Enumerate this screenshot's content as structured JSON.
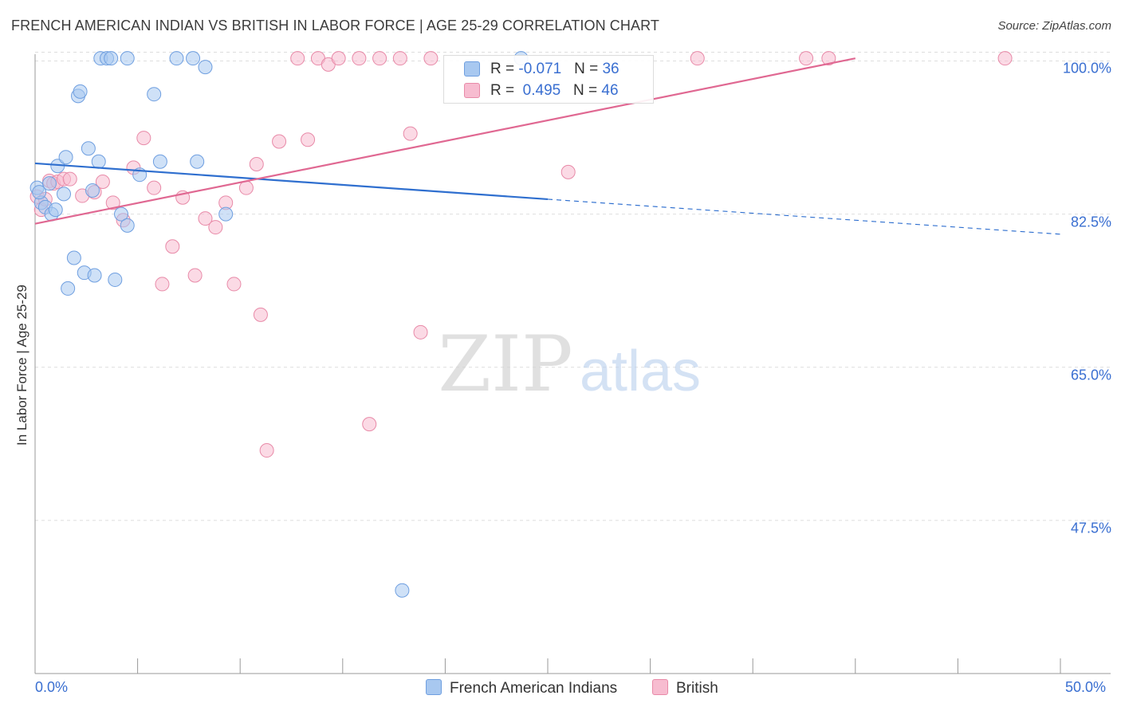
{
  "header": {
    "title": "FRENCH AMERICAN INDIAN VS BRITISH IN LABOR FORCE | AGE 25-29 CORRELATION CHART",
    "source": "Source: ZipAtlas.com"
  },
  "watermark": {
    "zip": "ZIP",
    "atlas": "atlas"
  },
  "legend": {
    "rows": [
      {
        "r_label": "R = ",
        "r_value": "-0.071",
        "n_label": "N = ",
        "n_value": "36"
      },
      {
        "r_label": "R = ",
        "r_value": "0.495",
        "n_label": "N = ",
        "n_value": "46"
      }
    ]
  },
  "bottom_legend": {
    "series1": "French American Indians",
    "series2": "British"
  },
  "colors": {
    "blue_fill": "#a8c8f0",
    "blue_stroke": "#6f9fe0",
    "blue_line": "#2f6fcf",
    "pink_fill": "#f7bcd0",
    "pink_stroke": "#e88aa8",
    "pink_line": "#e06892",
    "tick_text": "#3a6fd1",
    "grid": "#dedede"
  },
  "chart_data": {
    "type": "scatter",
    "title": "FRENCH AMERICAN INDIAN VS BRITISH IN LABOR FORCE | AGE 25-29 CORRELATION CHART",
    "xlabel": "",
    "ylabel": "In Labor Force | Age 25-29",
    "xlim": [
      0,
      50
    ],
    "ylim": [
      30,
      101.5
    ],
    "x_tick_labels": [
      "0.0%",
      "50.0%"
    ],
    "y_ticks": [
      47.5,
      65.0,
      82.5,
      100.0
    ],
    "y_tick_labels": [
      "47.5%",
      "65.0%",
      "82.5%",
      "100.0%"
    ],
    "grid": true,
    "series": [
      {
        "name": "French American Indians",
        "r": -0.071,
        "n": 36,
        "trend": {
          "x0": 0,
          "y0": 88.3,
          "x1": 25,
          "y1": 84.2,
          "dash_x1": 50,
          "dash_y1": 80.2
        },
        "points": [
          [
            0.1,
            85.5
          ],
          [
            0.3,
            83.8
          ],
          [
            0.5,
            83.3
          ],
          [
            0.7,
            86.0
          ],
          [
            0.8,
            82.5
          ],
          [
            1.0,
            83.0
          ],
          [
            1.1,
            88.0
          ],
          [
            1.4,
            84.8
          ],
          [
            1.5,
            89.0
          ],
          [
            1.6,
            74.0
          ],
          [
            1.9,
            77.5
          ],
          [
            2.1,
            96.0
          ],
          [
            2.2,
            96.5
          ],
          [
            2.4,
            75.8
          ],
          [
            2.6,
            90.0
          ],
          [
            2.8,
            85.2
          ],
          [
            2.9,
            75.5
          ],
          [
            3.1,
            88.5
          ],
          [
            3.2,
            100.3
          ],
          [
            3.5,
            100.3
          ],
          [
            3.7,
            100.3
          ],
          [
            3.9,
            75.0
          ],
          [
            4.2,
            82.5
          ],
          [
            4.5,
            81.2
          ],
          [
            4.5,
            100.3
          ],
          [
            5.1,
            87.0
          ],
          [
            5.8,
            96.2
          ],
          [
            6.1,
            88.5
          ],
          [
            6.9,
            100.3
          ],
          [
            7.7,
            100.3
          ],
          [
            7.9,
            88.5
          ],
          [
            8.3,
            99.3
          ],
          [
            9.3,
            82.5
          ],
          [
            17.9,
            39.5
          ],
          [
            23.7,
            100.3
          ],
          [
            0.2,
            85.0
          ]
        ]
      },
      {
        "name": "British",
        "r": 0.495,
        "n": 46,
        "trend": {
          "x0": 0,
          "y0": 81.4,
          "x1": 40,
          "y1": 100.3
        },
        "points": [
          [
            0.1,
            84.5
          ],
          [
            0.3,
            83.0
          ],
          [
            0.5,
            84.2
          ],
          [
            0.7,
            86.3
          ],
          [
            0.9,
            86.0
          ],
          [
            1.1,
            86.2
          ],
          [
            1.4,
            86.5
          ],
          [
            1.7,
            86.5
          ],
          [
            2.3,
            84.6
          ],
          [
            2.9,
            85.0
          ],
          [
            3.3,
            86.2
          ],
          [
            3.8,
            83.8
          ],
          [
            4.3,
            81.8
          ],
          [
            4.8,
            87.8
          ],
          [
            5.3,
            91.2
          ],
          [
            5.8,
            85.5
          ],
          [
            6.2,
            74.5
          ],
          [
            6.7,
            78.8
          ],
          [
            7.2,
            84.4
          ],
          [
            7.8,
            75.5
          ],
          [
            8.3,
            82.0
          ],
          [
            8.8,
            81.0
          ],
          [
            9.3,
            83.8
          ],
          [
            9.7,
            74.5
          ],
          [
            10.3,
            85.5
          ],
          [
            10.8,
            88.2
          ],
          [
            11.0,
            71.0
          ],
          [
            11.3,
            55.5
          ],
          [
            11.9,
            90.8
          ],
          [
            12.8,
            100.3
          ],
          [
            13.3,
            91.0
          ],
          [
            13.8,
            100.3
          ],
          [
            14.3,
            99.6
          ],
          [
            14.8,
            100.3
          ],
          [
            15.8,
            100.3
          ],
          [
            16.3,
            58.5
          ],
          [
            16.8,
            100.3
          ],
          [
            17.8,
            100.3
          ],
          [
            18.3,
            91.7
          ],
          [
            18.8,
            69.0
          ],
          [
            19.3,
            100.3
          ],
          [
            26.0,
            87.3
          ],
          [
            32.3,
            100.3
          ],
          [
            37.6,
            100.3
          ],
          [
            38.7,
            100.3
          ],
          [
            47.3,
            100.3
          ]
        ]
      }
    ]
  }
}
